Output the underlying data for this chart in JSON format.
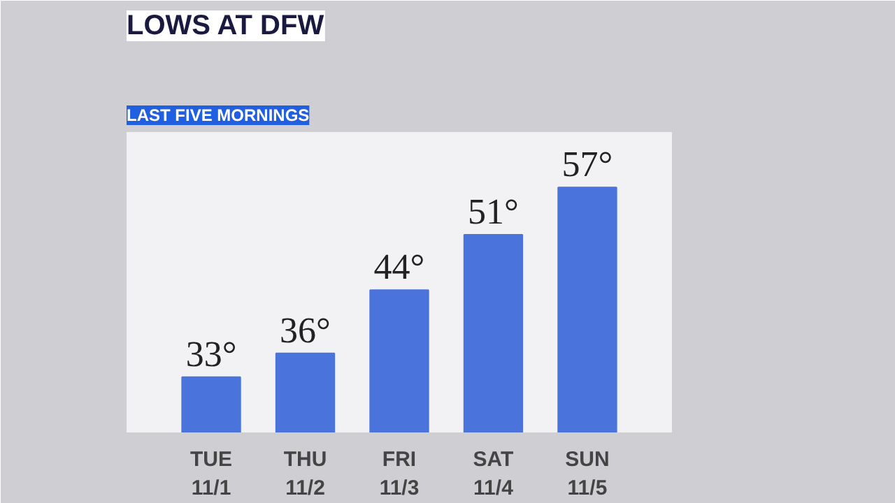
{
  "chart_data": {
    "type": "bar",
    "title": "LOWS AT DFW",
    "subtitle": "LAST FIVE MORNINGS",
    "categories": [
      "TUE\n11/1",
      "THU\n11/2",
      "FRI\n11/3",
      "SAT\n11/4",
      "SUN\n11/5"
    ],
    "values": [
      33,
      36,
      44,
      51,
      57
    ],
    "color": "#4a74dc",
    "value_labels": [
      "33°",
      "36°",
      "44°",
      "51°",
      "57°"
    ],
    "ylim": [
      26,
      64
    ],
    "grid": false,
    "tick_labels": "x"
  }
}
